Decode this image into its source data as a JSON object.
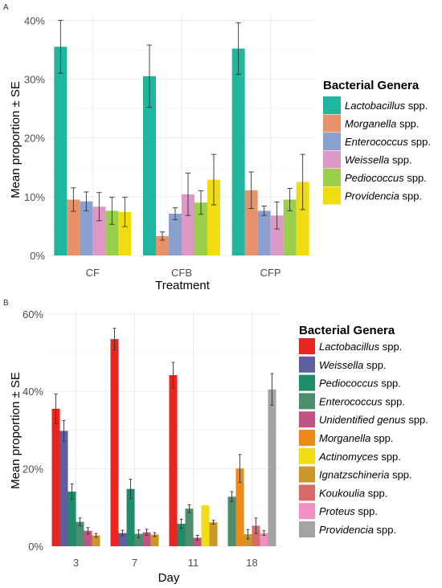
{
  "chart_data": [
    {
      "panel": "A",
      "type": "bar",
      "xlabel": "Treatment",
      "ylabel": "Mean proportion ± SE",
      "ylim": [
        0,
        41
      ],
      "yticks": [
        "0%",
        "10%",
        "20%",
        "30%",
        "40%"
      ],
      "ytick_values": [
        0,
        10,
        20,
        30,
        40
      ],
      "categories": [
        "CF",
        "CFB",
        "CFP"
      ],
      "legend_title": "Bacterial Genera",
      "legend_placement": "right",
      "grid": true,
      "series": [
        {
          "name": "Lactobacillus",
          "suffix": " spp.",
          "color": "#20b69e",
          "values": [
            35.5,
            30.5,
            35.2
          ],
          "se": [
            4.5,
            5.3,
            4.4
          ]
        },
        {
          "name": "Morganella",
          "suffix": " spp.",
          "color": "#e8926a",
          "values": [
            9.5,
            3.3,
            11.1
          ],
          "se": [
            2.0,
            0.7,
            3.1
          ]
        },
        {
          "name": "Enterococcus",
          "suffix": " spp.",
          "color": "#8aa0cf",
          "values": [
            9.2,
            7.1,
            7.6
          ],
          "se": [
            1.6,
            1.0,
            0.8
          ]
        },
        {
          "name": "Weissella",
          "suffix": " spp.",
          "color": "#de98c6",
          "values": [
            8.3,
            10.4,
            6.8
          ],
          "se": [
            2.4,
            3.6,
            2.3
          ]
        },
        {
          "name": "Pediococcus",
          "suffix": " spp.",
          "color": "#99cf4a",
          "values": [
            7.6,
            9.0,
            9.5
          ],
          "se": [
            2.3,
            2.0,
            1.9
          ]
        },
        {
          "name": "Providencia",
          "suffix": " spp.",
          "color": "#f0dc10",
          "values": [
            7.4,
            12.9,
            12.5
          ],
          "se": [
            2.5,
            4.3,
            4.7
          ]
        }
      ]
    },
    {
      "panel": "B",
      "type": "bar",
      "xlabel": "Day",
      "ylabel": "Mean proportion ± SE",
      "ylim": [
        0,
        61
      ],
      "yticks": [
        "0%",
        "20%",
        "40%",
        "60%"
      ],
      "ytick_values": [
        0,
        20,
        40,
        60
      ],
      "categories": [
        "3",
        "7",
        "11",
        "18"
      ],
      "legend_title": "Bacterial Genera",
      "legend_placement": "right",
      "grid": true,
      "series": [
        {
          "name": "Lactobacillus",
          "suffix": " spp.",
          "color": "#e8251f",
          "values": [
            35.5,
            53.5,
            44.2,
            0
          ],
          "se": [
            3.8,
            2.8,
            3.3,
            0
          ]
        },
        {
          "name": "Weissella",
          "suffix": " spp.",
          "color": "#5e5f9e",
          "values": [
            29.8,
            3.4,
            0,
            0
          ],
          "se": [
            2.7,
            0.7,
            0,
            0
          ]
        },
        {
          "name": "Pediococcus",
          "suffix": " spp.",
          "color": "#1f8c6c",
          "values": [
            14.1,
            14.8,
            5.8,
            0
          ],
          "se": [
            2.0,
            2.5,
            1.2,
            0
          ]
        },
        {
          "name": "Enterococcus",
          "suffix": " spp.",
          "color": "#4e8c6e",
          "values": [
            6.3,
            3.2,
            9.7,
            12.8
          ],
          "se": [
            1.0,
            1.0,
            1.0,
            1.3
          ]
        },
        {
          "name": "Unidentified genus",
          "suffix": " spp.",
          "color": "#c25484",
          "values": [
            4.0,
            3.6,
            2.2,
            0
          ],
          "se": [
            0.8,
            0.8,
            0.6,
            0
          ]
        },
        {
          "name": "Morganella",
          "suffix": " spp.",
          "color": "#ee8a18",
          "values": [
            0,
            0,
            0,
            20.1
          ],
          "se": [
            0,
            0,
            0,
            3.6
          ]
        },
        {
          "name": "Actinomyces",
          "suffix": " spp.",
          "color": "#f2dc14",
          "values": [
            0,
            0,
            10.6,
            0
          ],
          "se": [
            0,
            0,
            0,
            0
          ]
        },
        {
          "name": "Ignatzschineria",
          "suffix": " spp.",
          "color": "#cd9628",
          "values": [
            2.8,
            3.0,
            6.2,
            3.1
          ],
          "se": [
            0.5,
            0.5,
            0.5,
            1.2
          ]
        },
        {
          "name": "Koukoulia",
          "suffix": " spp.",
          "color": "#d86a6a",
          "values": [
            0,
            0,
            0,
            5.3
          ],
          "se": [
            0,
            0,
            0,
            2.0
          ]
        },
        {
          "name": "Proteus",
          "suffix": " spp.",
          "color": "#f090c4",
          "values": [
            0,
            0,
            0,
            3.4
          ],
          "se": [
            0,
            0,
            0,
            0.6
          ]
        },
        {
          "name": "Providencia",
          "suffix": " spp.",
          "color": "#a3a3a3",
          "values": [
            0,
            0,
            0,
            40.5
          ],
          "se": [
            0,
            0,
            0,
            4.1
          ]
        }
      ]
    }
  ]
}
